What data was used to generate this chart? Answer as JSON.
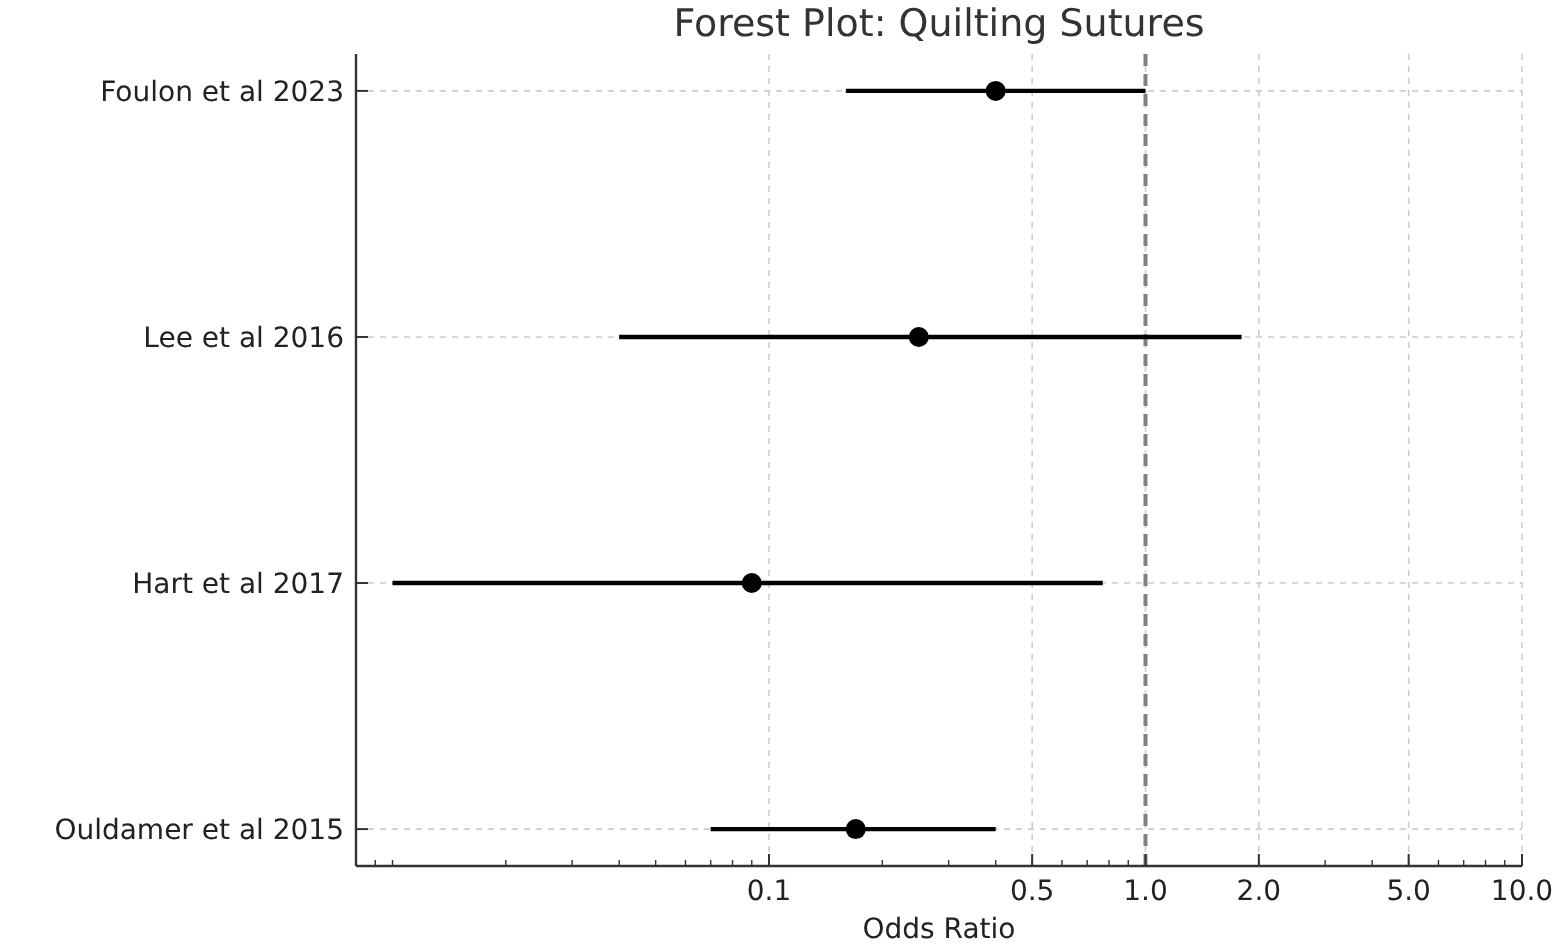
{
  "chart_data": {
    "type": "scatter",
    "orientation": "horizontal",
    "title": "Forest Plot: Quilting Sutures",
    "xlabel": "Odds Ratio",
    "categories": [
      "Foulon et al 2023",
      "Lee et al 2016",
      "Hart et al 2017",
      "Ouldamer et al 2015"
    ],
    "series": [
      {
        "color": "#000000",
        "values": [
          0.4,
          0.25,
          0.09,
          0.17
        ],
        "errors": [
          [
            0.16,
            1.0
          ],
          [
            0.04,
            1.8
          ],
          [
            0.01,
            0.77
          ],
          [
            0.07,
            0.4
          ]
        ]
      }
    ],
    "xlim": [
      0.008,
      10
    ],
    "xticks": [
      0.1,
      {
        "value": 0.5,
        "label": "0.5"
      },
      {
        "value": 1,
        "label": "1.0"
      },
      {
        "value": 2,
        "label": "2.0"
      },
      {
        "value": 5,
        "label": "5.0"
      },
      {
        "value": 10,
        "label": "10.0"
      }
    ],
    "log": "x",
    "grid": true,
    "marker": "circle",
    "ref_lines": [
      {
        "axis": "x",
        "value": 1,
        "color": "#808080",
        "line_style": "dashed"
      }
    ]
  }
}
